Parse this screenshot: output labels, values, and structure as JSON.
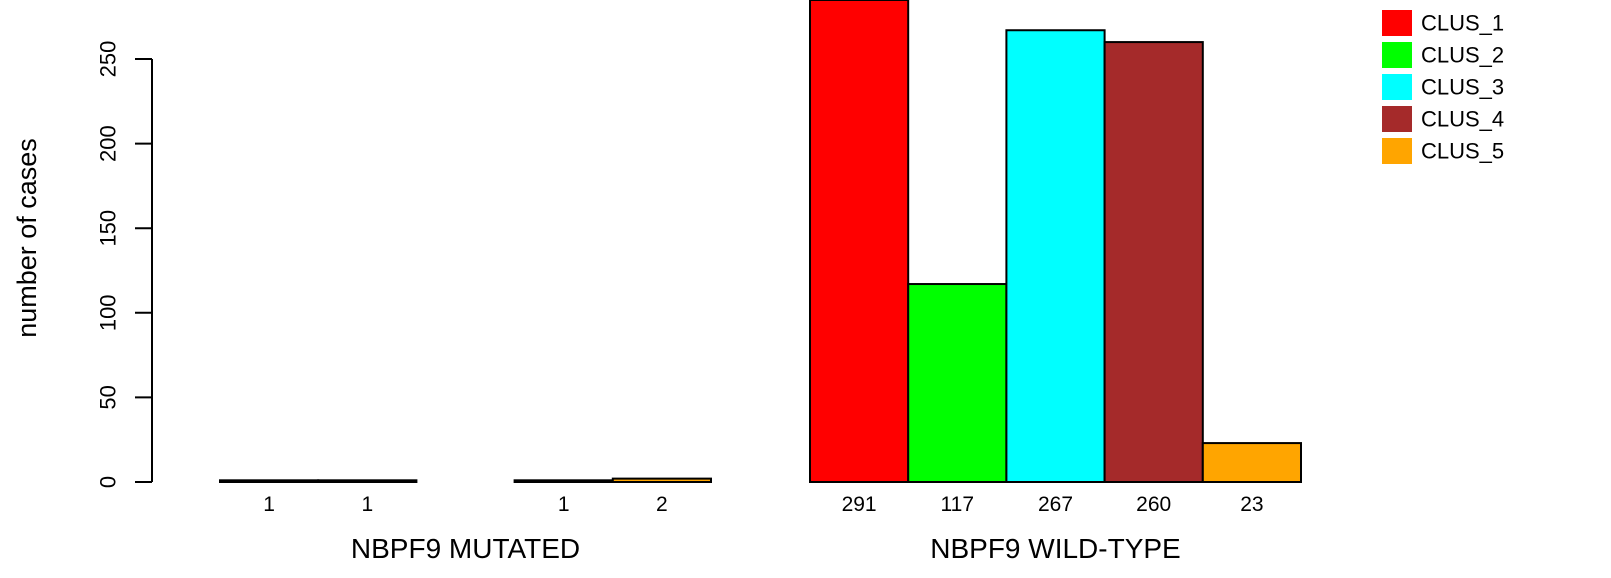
{
  "chart_data": {
    "type": "bar",
    "title": "",
    "ylabel": "number of cases",
    "ylim": [
      0,
      291
    ],
    "y_ticks": [
      0,
      50,
      100,
      150,
      200,
      250
    ],
    "groups": [
      {
        "label": "NBPF9 MUTATED",
        "values": [
          1,
          1,
          0,
          1,
          2
        ],
        "labels": [
          "1",
          "1",
          "",
          "1",
          "2"
        ]
      },
      {
        "label": "NBPF9 WILD-TYPE",
        "values": [
          291,
          117,
          267,
          260,
          23
        ],
        "labels": [
          "291",
          "117",
          "267",
          "260",
          "23"
        ]
      }
    ],
    "series": [
      {
        "name": "CLUS_1",
        "color": "#ff0000"
      },
      {
        "name": "CLUS_2",
        "color": "#00ff00"
      },
      {
        "name": "CLUS_3",
        "color": "#00ffff"
      },
      {
        "name": "CLUS_4",
        "color": "#a52a2a"
      },
      {
        "name": "CLUS_5",
        "color": "#ffa500"
      }
    ],
    "legend_position": "top-right",
    "grid": false
  }
}
